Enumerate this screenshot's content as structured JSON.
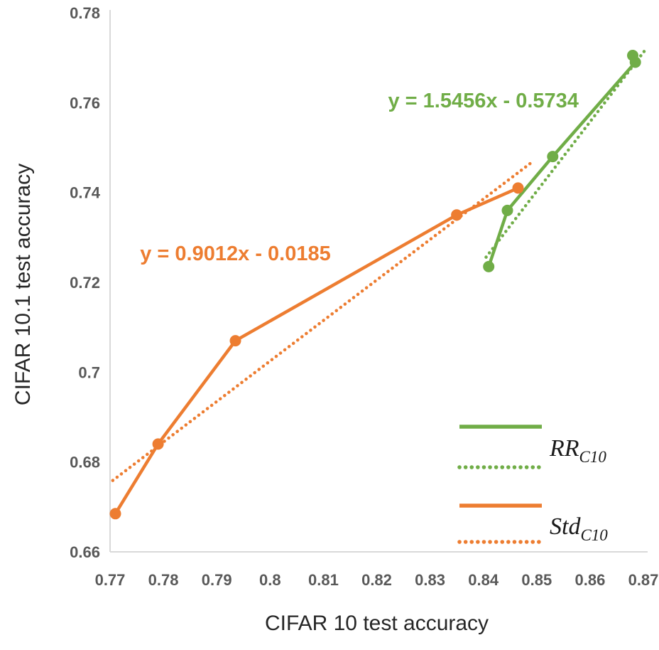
{
  "figure": {
    "x_axis_title": "CIFAR 10 test accuracy",
    "y_axis_title": "CIFAR 10.1 test accuracy"
  },
  "chart_data": {
    "type": "line",
    "title": "",
    "xlabel": "CIFAR 10 test accuracy",
    "ylabel": "CIFAR 10.1 test accuracy",
    "xlim": [
      0.77,
      0.87
    ],
    "ylim": [
      0.66,
      0.78
    ],
    "x_ticks": [
      0.77,
      0.78,
      0.79,
      0.8,
      0.81,
      0.82,
      0.83,
      0.84,
      0.85,
      0.86,
      0.87
    ],
    "x_tick_labels": [
      "0.77",
      "0.78",
      "0.79",
      "0.8",
      "0.81",
      "0.82",
      "0.83",
      "0.84",
      "0.85",
      "0.86",
      "0.87"
    ],
    "y_ticks": [
      0.66,
      0.68,
      0.7,
      0.72,
      0.74,
      0.76,
      0.78
    ],
    "y_tick_labels": [
      "0.66",
      "0.68",
      "0.7",
      "0.72",
      "0.74",
      "0.76",
      "0.78"
    ],
    "grid": false,
    "legend_position": "inside-bottom-right",
    "series": [
      {
        "name": "RR_C10",
        "color": "#70AD47",
        "style": "solid",
        "markers": true,
        "points": [
          [
            0.841,
            0.7235
          ],
          [
            0.8445,
            0.736
          ],
          [
            0.853,
            0.748
          ],
          [
            0.8685,
            0.769
          ],
          [
            0.868,
            0.7705
          ]
        ]
      },
      {
        "name": "RR_C10_trendline",
        "color": "#70AD47",
        "style": "dotted",
        "markers": false,
        "equation": "y = 1.5456x - 0.5734",
        "points": [
          [
            0.8405,
            0.7256
          ],
          [
            0.8702,
            0.7715
          ]
        ]
      },
      {
        "name": "Std_C10",
        "color": "#ED7D31",
        "style": "solid",
        "markers": true,
        "points": [
          [
            0.771,
            0.6685
          ],
          [
            0.779,
            0.684
          ],
          [
            0.7935,
            0.707
          ],
          [
            0.835,
            0.735
          ],
          [
            0.8465,
            0.741
          ]
        ]
      },
      {
        "name": "Std_C10_trendline",
        "color": "#ED7D31",
        "style": "dotted",
        "markers": false,
        "equation": "y = 0.9012x - 0.0185",
        "points": [
          [
            0.7705,
            0.6759
          ],
          [
            0.8495,
            0.7471
          ]
        ]
      }
    ],
    "annotations": [
      {
        "text": "y = 1.5456x - 0.5734",
        "color": "#70AD47",
        "x": 0.84,
        "y": 0.7605
      },
      {
        "text": "y = 0.9012x - 0.0185",
        "color": "#ED7D31",
        "x": 0.7935,
        "y": 0.7265
      }
    ]
  },
  "legend": {
    "items": [
      {
        "text": "RR",
        "sub": "C10",
        "color": "#70AD47"
      },
      {
        "text": "Std",
        "sub": "C10",
        "color": "#ED7D31"
      }
    ]
  },
  "colors": {
    "green": "#70AD47",
    "orange": "#ED7D31",
    "tick_label": "#595959",
    "axis_title": "#262626",
    "axis_line": "#D9D9D9",
    "background": "#FFFFFF"
  }
}
